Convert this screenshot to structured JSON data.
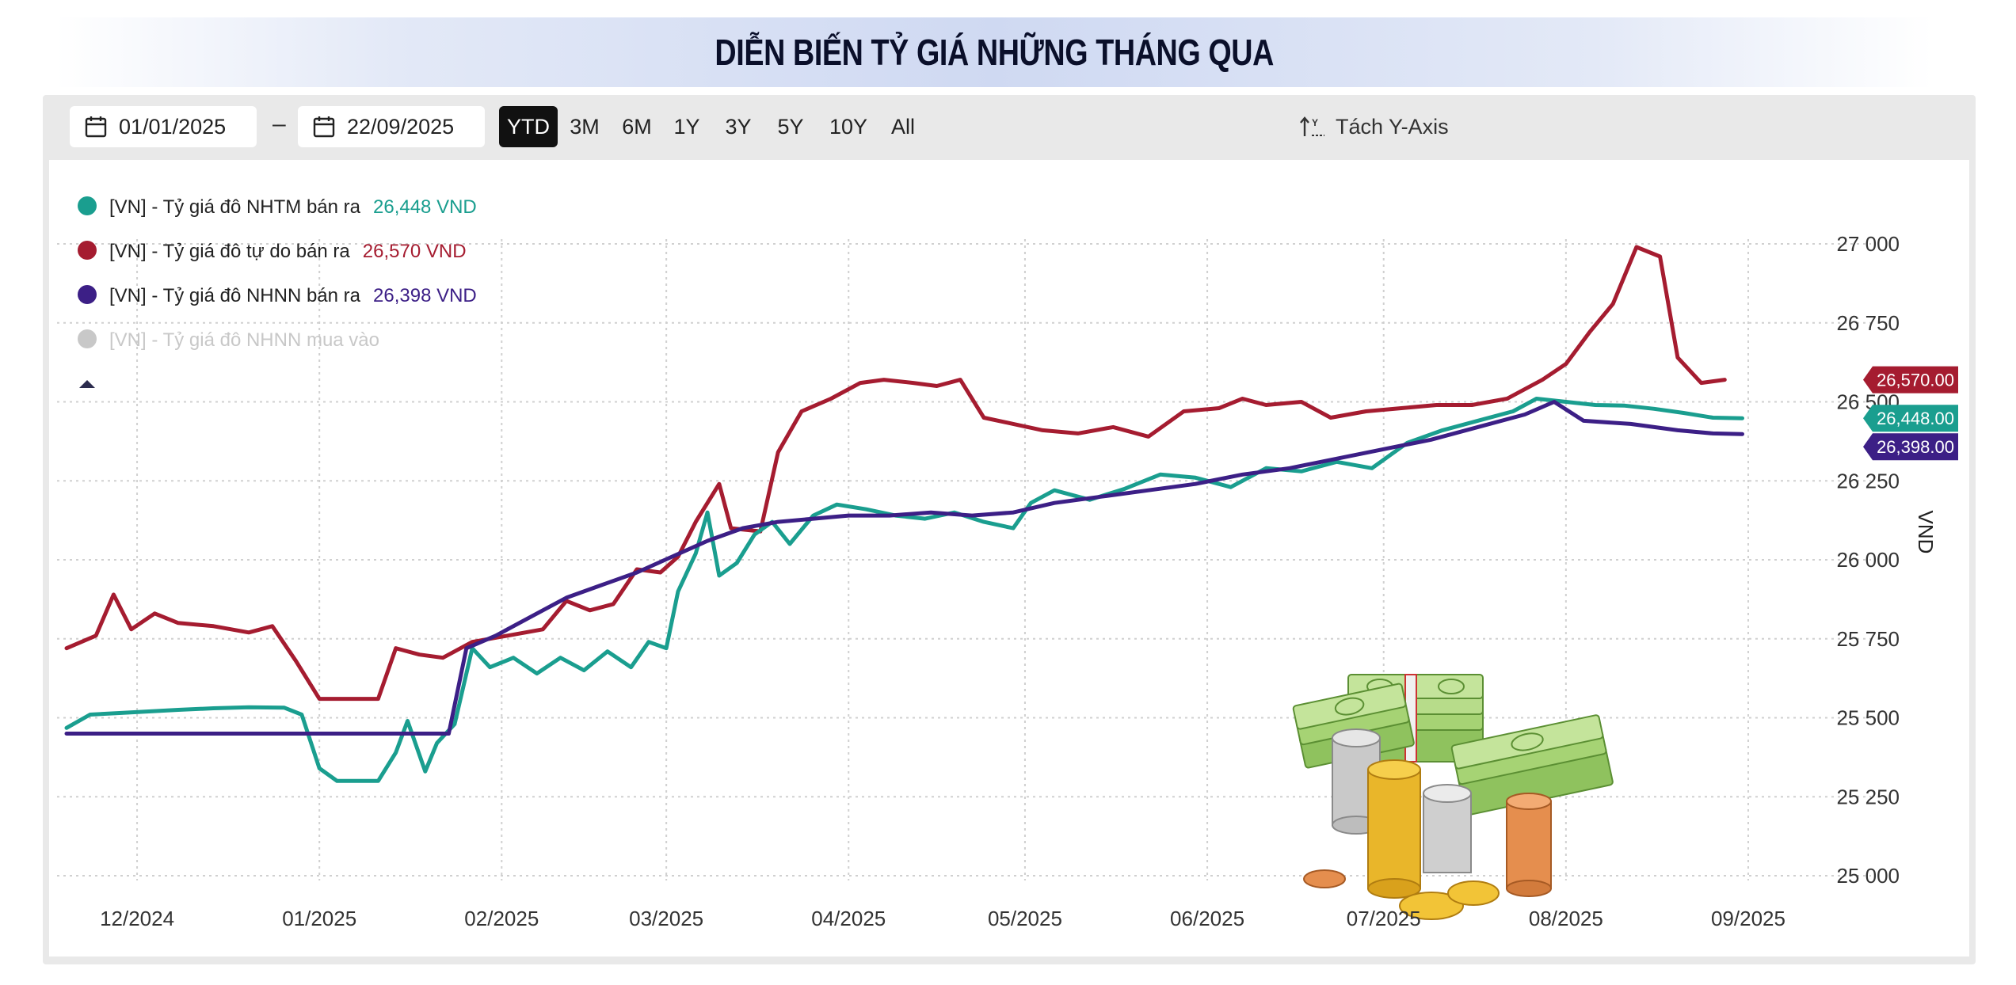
{
  "title": "DIỄN BIẾN TỶ GIÁ NHỮNG THÁNG QUA",
  "toolbar": {
    "start_date": "01/01/2025",
    "end_date": "22/09/2025",
    "dash": "–",
    "ranges": [
      "YTD",
      "3M",
      "6M",
      "1Y",
      "3Y",
      "5Y",
      "10Y",
      "All"
    ],
    "active_range": "YTD",
    "split_axis_label": "Tách Y-Axis"
  },
  "chart_data": {
    "type": "line",
    "ylabel": "VND",
    "ylim": [
      25000,
      27000
    ],
    "yticks": [
      "27 000",
      "26 750",
      "26 500",
      "26 250",
      "26 000",
      "25 750",
      "25 500",
      "25 250",
      "25 000"
    ],
    "x_ticks": [
      "12/2024",
      "01/2025",
      "02/2025",
      "03/2025",
      "04/2025",
      "05/2025",
      "06/2025",
      "07/2025",
      "08/2025",
      "09/2025"
    ],
    "grid": true,
    "legend_position": "top-left",
    "series": [
      {
        "name": "[VN] - Tỷ giá đô NHTM bán ra",
        "legend_value": "26,448 VND",
        "end_label": "26,448.00",
        "color": "#1a9e8f",
        "visible": true,
        "points": [
          [
            "2024-11-19",
            25468
          ],
          [
            "2024-11-23",
            25510
          ],
          [
            "2024-11-28",
            25515
          ],
          [
            "2024-12-03",
            25520
          ],
          [
            "2024-12-08",
            25525
          ],
          [
            "2024-12-14",
            25530
          ],
          [
            "2024-12-20",
            25533
          ],
          [
            "2024-12-26",
            25532
          ],
          [
            "2024-12-29",
            25510
          ],
          [
            "2025-01-01",
            25340
          ],
          [
            "2025-01-04",
            25300
          ],
          [
            "2025-01-08",
            25300
          ],
          [
            "2025-01-11",
            25300
          ],
          [
            "2025-01-14",
            25390
          ],
          [
            "2025-01-16",
            25490
          ],
          [
            "2025-01-19",
            25330
          ],
          [
            "2025-01-21",
            25420
          ],
          [
            "2025-01-24",
            25480
          ],
          [
            "2025-01-27",
            25720
          ],
          [
            "2025-01-30",
            25660
          ],
          [
            "2025-02-03",
            25690
          ],
          [
            "2025-02-07",
            25640
          ],
          [
            "2025-02-11",
            25690
          ],
          [
            "2025-02-15",
            25650
          ],
          [
            "2025-02-19",
            25710
          ],
          [
            "2025-02-23",
            25660
          ],
          [
            "2025-02-26",
            25740
          ],
          [
            "2025-03-01",
            25720
          ],
          [
            "2025-03-03",
            25900
          ],
          [
            "2025-03-06",
            26020
          ],
          [
            "2025-03-08",
            26150
          ],
          [
            "2025-03-10",
            25950
          ],
          [
            "2025-03-13",
            25990
          ],
          [
            "2025-03-16",
            26080
          ],
          [
            "2025-03-19",
            26120
          ],
          [
            "2025-03-22",
            26050
          ],
          [
            "2025-03-26",
            26140
          ],
          [
            "2025-03-30",
            26175
          ],
          [
            "2025-04-04",
            26160
          ],
          [
            "2025-04-09",
            26140
          ],
          [
            "2025-04-14",
            26130
          ],
          [
            "2025-04-19",
            26150
          ],
          [
            "2025-04-24",
            26120
          ],
          [
            "2025-04-29",
            26100
          ],
          [
            "2025-05-02",
            26180
          ],
          [
            "2025-05-06",
            26220
          ],
          [
            "2025-05-12",
            26190
          ],
          [
            "2025-05-18",
            26225
          ],
          [
            "2025-05-24",
            26270
          ],
          [
            "2025-05-30",
            26260
          ],
          [
            "2025-06-05",
            26230
          ],
          [
            "2025-06-11",
            26290
          ],
          [
            "2025-06-17",
            26280
          ],
          [
            "2025-06-23",
            26310
          ],
          [
            "2025-06-29",
            26290
          ],
          [
            "2025-07-05",
            26370
          ],
          [
            "2025-07-11",
            26410
          ],
          [
            "2025-07-17",
            26440
          ],
          [
            "2025-07-23",
            26470
          ],
          [
            "2025-07-27",
            26510
          ],
          [
            "2025-08-01",
            26500
          ],
          [
            "2025-08-06",
            26490
          ],
          [
            "2025-08-11",
            26488
          ],
          [
            "2025-08-16",
            26478
          ],
          [
            "2025-08-21",
            26465
          ],
          [
            "2025-08-26",
            26450
          ],
          [
            "2025-08-31",
            26448
          ]
        ]
      },
      {
        "name": "[VN] - Tỷ giá đô tự do bán ra",
        "legend_value": "26,570 VND",
        "end_label": "26,570.00",
        "color": "#a51c30",
        "visible": true,
        "points": [
          [
            "2024-11-19",
            25720
          ],
          [
            "2024-11-24",
            25760
          ],
          [
            "2024-11-27",
            25890
          ],
          [
            "2024-11-30",
            25780
          ],
          [
            "2024-12-04",
            25830
          ],
          [
            "2024-12-08",
            25800
          ],
          [
            "2024-12-14",
            25790
          ],
          [
            "2024-12-20",
            25770
          ],
          [
            "2024-12-24",
            25790
          ],
          [
            "2024-12-28",
            25680
          ],
          [
            "2025-01-01",
            25560
          ],
          [
            "2025-01-05",
            25560
          ],
          [
            "2025-01-11",
            25560
          ],
          [
            "2025-01-14",
            25720
          ],
          [
            "2025-01-18",
            25700
          ],
          [
            "2025-01-22",
            25690
          ],
          [
            "2025-01-27",
            25740
          ],
          [
            "2025-02-02",
            25760
          ],
          [
            "2025-02-08",
            25780
          ],
          [
            "2025-02-12",
            25870
          ],
          [
            "2025-02-16",
            25840
          ],
          [
            "2025-02-20",
            25860
          ],
          [
            "2025-02-24",
            25970
          ],
          [
            "2025-02-28",
            25960
          ],
          [
            "2025-03-03",
            26010
          ],
          [
            "2025-03-06",
            26120
          ],
          [
            "2025-03-10",
            26240
          ],
          [
            "2025-03-12",
            26100
          ],
          [
            "2025-03-17",
            26090
          ],
          [
            "2025-03-20",
            26340
          ],
          [
            "2025-03-24",
            26470
          ],
          [
            "2025-03-29",
            26510
          ],
          [
            "2025-04-03",
            26560
          ],
          [
            "2025-04-07",
            26570
          ],
          [
            "2025-04-12",
            26560
          ],
          [
            "2025-04-16",
            26550
          ],
          [
            "2025-04-20",
            26570
          ],
          [
            "2025-04-24",
            26450
          ],
          [
            "2025-04-29",
            26430
          ],
          [
            "2025-05-04",
            26410
          ],
          [
            "2025-05-10",
            26400
          ],
          [
            "2025-05-16",
            26420
          ],
          [
            "2025-05-22",
            26390
          ],
          [
            "2025-05-28",
            26470
          ],
          [
            "2025-06-03",
            26480
          ],
          [
            "2025-06-07",
            26510
          ],
          [
            "2025-06-11",
            26490
          ],
          [
            "2025-06-17",
            26500
          ],
          [
            "2025-06-22",
            26450
          ],
          [
            "2025-06-28",
            26470
          ],
          [
            "2025-07-04",
            26480
          ],
          [
            "2025-07-10",
            26490
          ],
          [
            "2025-07-16",
            26490
          ],
          [
            "2025-07-22",
            26510
          ],
          [
            "2025-07-28",
            26570
          ],
          [
            "2025-08-01",
            26620
          ],
          [
            "2025-08-05",
            26720
          ],
          [
            "2025-08-09",
            26810
          ],
          [
            "2025-08-13",
            26990
          ],
          [
            "2025-08-17",
            26960
          ],
          [
            "2025-08-20",
            26640
          ],
          [
            "2025-08-24",
            26560
          ],
          [
            "2025-08-28",
            26570
          ]
        ]
      },
      {
        "name": "[VN] - Tỷ giá đô NHNN bán ra",
        "legend_value": "26,398 VND",
        "end_label": "26,398.00",
        "color": "#3c1f86",
        "visible": true,
        "points": [
          [
            "2024-11-19",
            25450
          ],
          [
            "2024-12-01",
            25450
          ],
          [
            "2024-12-15",
            25450
          ],
          [
            "2025-01-01",
            25450
          ],
          [
            "2025-01-15",
            25450
          ],
          [
            "2025-01-23",
            25450
          ],
          [
            "2025-01-26",
            25720
          ],
          [
            "2025-01-31",
            25760
          ],
          [
            "2025-02-06",
            25820
          ],
          [
            "2025-02-12",
            25880
          ],
          [
            "2025-02-18",
            25920
          ],
          [
            "2025-02-24",
            25960
          ],
          [
            "2025-03-02",
            26010
          ],
          [
            "2025-03-08",
            26060
          ],
          [
            "2025-03-14",
            26100
          ],
          [
            "2025-03-20",
            26120
          ],
          [
            "2025-03-26",
            26130
          ],
          [
            "2025-04-01",
            26140
          ],
          [
            "2025-04-08",
            26140
          ],
          [
            "2025-04-15",
            26150
          ],
          [
            "2025-04-22",
            26140
          ],
          [
            "2025-04-29",
            26150
          ],
          [
            "2025-05-06",
            26180
          ],
          [
            "2025-05-14",
            26200
          ],
          [
            "2025-05-22",
            26220
          ],
          [
            "2025-05-30",
            26240
          ],
          [
            "2025-06-07",
            26270
          ],
          [
            "2025-06-15",
            26290
          ],
          [
            "2025-06-23",
            26320
          ],
          [
            "2025-07-01",
            26350
          ],
          [
            "2025-07-09",
            26380
          ],
          [
            "2025-07-17",
            26420
          ],
          [
            "2025-07-25",
            26460
          ],
          [
            "2025-07-30",
            26500
          ],
          [
            "2025-08-04",
            26440
          ],
          [
            "2025-08-12",
            26430
          ],
          [
            "2025-08-20",
            26410
          ],
          [
            "2025-08-26",
            26400
          ],
          [
            "2025-08-31",
            26398
          ]
        ]
      },
      {
        "name": "[VN] - Tỷ giá đô NHNN mua vào",
        "color": "#c8c8c8",
        "visible": false
      }
    ]
  }
}
